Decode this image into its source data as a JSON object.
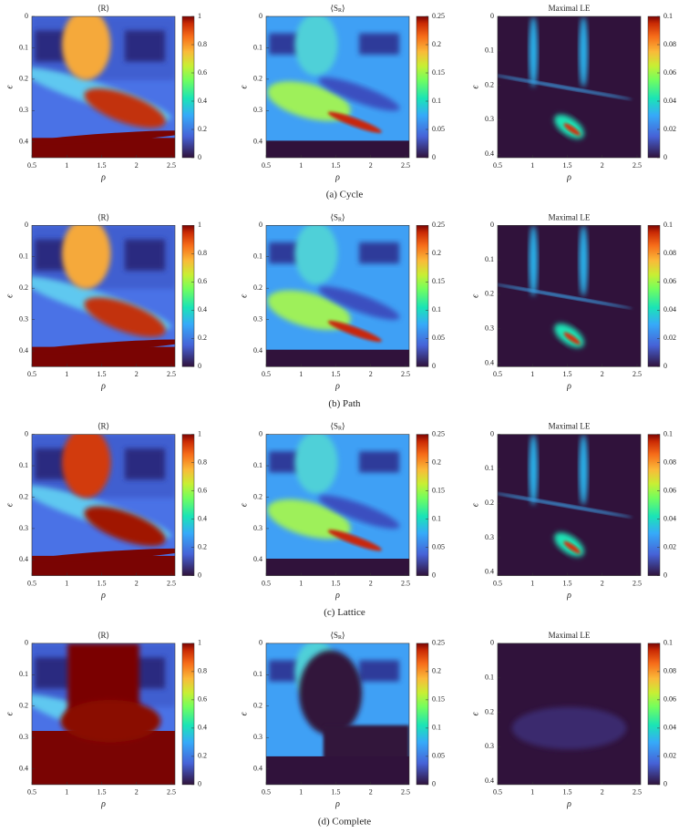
{
  "figure": {
    "rows": [
      {
        "caption": "(a) Cycle",
        "panels": [
          {
            "title": "⟨R⟩",
            "xlabel": "ρ",
            "ylabel": "ϵ",
            "xticks": [
              "0.5",
              "1",
              "1.5",
              "2",
              "2.5"
            ],
            "yticks": [
              "0",
              "0.1",
              "0.2",
              "0.3",
              "0.4"
            ],
            "colorbar_ticks": [
              "0",
              "0.2",
              "0.4",
              "0.6",
              "0.8",
              "1"
            ]
          },
          {
            "title": "⟨SR⟩",
            "xlabel": "ρ",
            "ylabel": "ϵ",
            "xticks": [
              "0.5",
              "1",
              "1.5",
              "2",
              "2.5"
            ],
            "yticks": [
              "0",
              "0.1",
              "0.2",
              "0.3",
              "0.4"
            ],
            "colorbar_ticks": [
              "0",
              "0.05",
              "0.1",
              "0.15",
              "0.2",
              "0.25"
            ]
          },
          {
            "title": "Maximal LE",
            "xlabel": "ρ",
            "ylabel": "ϵ",
            "xticks": [
              "0.5",
              "1",
              "1.5",
              "2",
              "2.5"
            ],
            "yticks": [
              "0",
              "0.1",
              "0.2",
              "0.3",
              "0.4"
            ],
            "colorbar_ticks": [
              "0",
              "0.02",
              "0.04",
              "0.06",
              "0.08",
              "0.1"
            ]
          }
        ]
      },
      {
        "caption": "(b) Path",
        "panels": [
          {
            "title": "⟨R⟩",
            "xlabel": "ρ",
            "ylabel": "ϵ",
            "xticks": [
              "0.5",
              "1",
              "1.5",
              "2",
              "2.5"
            ],
            "yticks": [
              "0",
              "0.1",
              "0.2",
              "0.3",
              "0.4"
            ],
            "colorbar_ticks": [
              "0",
              "0.2",
              "0.4",
              "0.6",
              "0.8",
              "1"
            ]
          },
          {
            "title": "⟨SR⟩",
            "xlabel": "ρ",
            "ylabel": "ϵ",
            "xticks": [
              "0.5",
              "1",
              "1.5",
              "2",
              "2.5"
            ],
            "yticks": [
              "0",
              "0.1",
              "0.2",
              "0.3",
              "0.4"
            ],
            "colorbar_ticks": [
              "0",
              "0.05",
              "0.1",
              "0.15",
              "0.2",
              "0.25"
            ]
          },
          {
            "title": "Maximal LE",
            "xlabel": "ρ",
            "ylabel": "ϵ",
            "xticks": [
              "0.5",
              "1",
              "1.5",
              "2",
              "2.5"
            ],
            "yticks": [
              "0",
              "0.1",
              "0.2",
              "0.3",
              "0.4"
            ],
            "colorbar_ticks": [
              "0",
              "0.02",
              "0.04",
              "0.06",
              "0.08",
              "0.1"
            ]
          }
        ]
      },
      {
        "caption": "(c) Lattice",
        "panels": [
          {
            "title": "⟨R⟩",
            "xlabel": "ρ",
            "ylabel": "ϵ",
            "xticks": [
              "0.5",
              "1",
              "1.5",
              "2",
              "2.5"
            ],
            "yticks": [
              "0",
              "0.1",
              "0.2",
              "0.3",
              "0.4"
            ],
            "colorbar_ticks": [
              "0",
              "0.2",
              "0.4",
              "0.6",
              "0.8",
              "1"
            ]
          },
          {
            "title": "⟨SR⟩",
            "xlabel": "ρ",
            "ylabel": "ϵ",
            "xticks": [
              "0.5",
              "1",
              "1.5",
              "2",
              "2.5"
            ],
            "yticks": [
              "0",
              "0.1",
              "0.2",
              "0.3",
              "0.4"
            ],
            "colorbar_ticks": [
              "0",
              "0.05",
              "0.1",
              "0.15",
              "0.2",
              "0.25"
            ]
          },
          {
            "title": "Maximal LE",
            "xlabel": "ρ",
            "ylabel": "ϵ",
            "xticks": [
              "0.5",
              "1",
              "1.5",
              "2",
              "2.5"
            ],
            "yticks": [
              "0",
              "0.1",
              "0.2",
              "0.3",
              "0.4"
            ],
            "colorbar_ticks": [
              "0",
              "0.02",
              "0.04",
              "0.06",
              "0.08",
              "0.1"
            ]
          }
        ]
      },
      {
        "caption": "(d) Complete",
        "panels": [
          {
            "title": "⟨R⟩",
            "xlabel": "ρ",
            "ylabel": "ϵ",
            "xticks": [
              "0.5",
              "1",
              "1.5",
              "2",
              "2.5"
            ],
            "yticks": [
              "0",
              "0.1",
              "0.2",
              "0.3",
              "0.4"
            ],
            "colorbar_ticks": [
              "0",
              "0.2",
              "0.4",
              "0.6",
              "0.8",
              "1"
            ]
          },
          {
            "title": "⟨SR⟩",
            "xlabel": "ρ",
            "ylabel": "ϵ",
            "xticks": [
              "0.5",
              "1",
              "1.5",
              "2",
              "2.5"
            ],
            "yticks": [
              "0",
              "0.1",
              "0.2",
              "0.3",
              "0.4"
            ],
            "colorbar_ticks": [
              "0",
              "0.05",
              "0.1",
              "0.15",
              "0.2",
              "0.25"
            ]
          },
          {
            "title": "Maximal LE",
            "xlabel": "ρ",
            "ylabel": "ϵ",
            "xticks": [
              "0.5",
              "1",
              "1.5",
              "2",
              "2.5"
            ],
            "yticks": [
              "0",
              "0.1",
              "0.2",
              "0.3",
              "0.4"
            ],
            "colorbar_ticks": [
              "0",
              "0.02",
              "0.04",
              "0.06",
              "0.08",
              "0.1"
            ]
          }
        ]
      }
    ]
  }
}
